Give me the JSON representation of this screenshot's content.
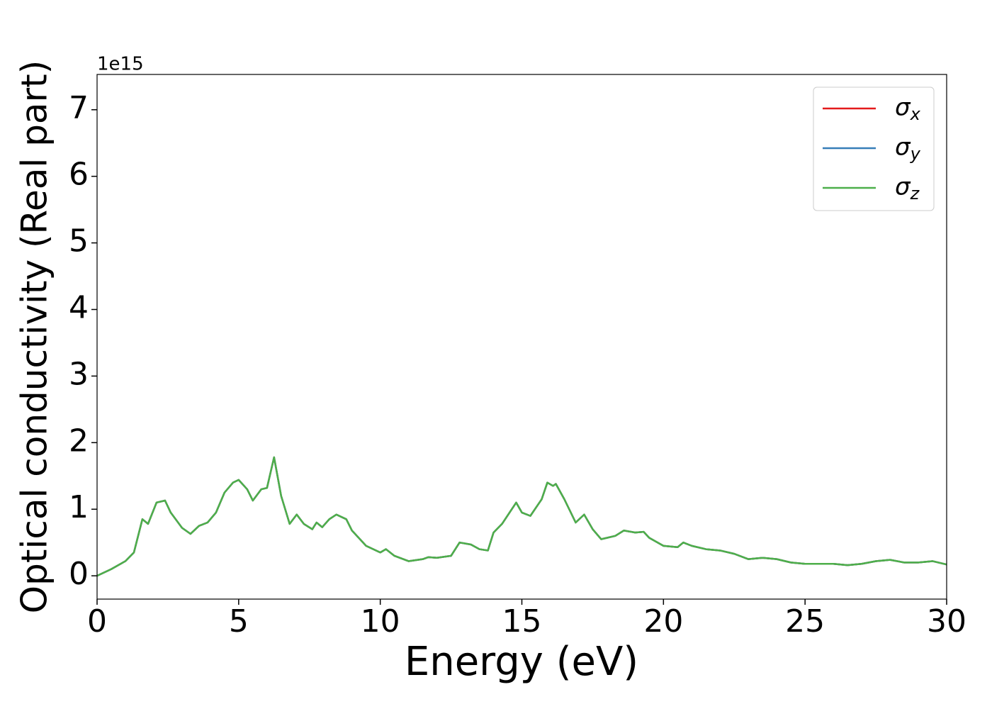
{
  "chart_data": {
    "type": "line",
    "y_label": "Optical conductivity (Real part)",
    "x_label": "Energy (eV)",
    "y_offset_label": "1e15",
    "x": [
      0,
      0.5,
      1,
      1.3,
      1.6,
      1.8,
      2.1,
      2.4,
      2.6,
      3,
      3.3,
      3.6,
      3.9,
      4.2,
      4.5,
      4.8,
      5,
      5.3,
      5.5,
      5.8,
      6,
      6.25,
      6.5,
      6.8,
      7.05,
      7.3,
      7.6,
      7.75,
      7.95,
      8.2,
      8.45,
      8.8,
      9,
      9.5,
      10,
      10.2,
      10.5,
      11,
      11.5,
      11.7,
      12,
      12.5,
      12.8,
      13.2,
      13.5,
      13.8,
      14,
      14.3,
      14.8,
      15,
      15.3,
      15.7,
      15.9,
      16.1,
      16.2,
      16.5,
      16.9,
      17.2,
      17.5,
      17.8,
      18.3,
      18.6,
      19,
      19.3,
      19.5,
      20,
      20.5,
      20.7,
      21,
      21.5,
      22,
      22.5,
      23,
      23.5,
      24,
      24.5,
      25,
      25.5,
      26,
      26.5,
      27,
      27.5,
      28,
      28.5,
      29,
      29.5,
      30
    ],
    "series": [
      {
        "name": "σx",
        "color": "#e41a1c",
        "values": [
          0,
          0.1,
          0.22,
          0.35,
          0.85,
          0.78,
          1.1,
          1.13,
          0.95,
          0.72,
          0.63,
          0.75,
          0.8,
          0.95,
          1.25,
          1.4,
          1.44,
          1.3,
          1.13,
          1.3,
          1.32,
          1.78,
          1.2,
          0.78,
          0.92,
          0.78,
          0.7,
          0.8,
          0.73,
          0.85,
          0.92,
          0.85,
          0.68,
          0.45,
          0.35,
          0.4,
          0.3,
          0.22,
          0.25,
          0.28,
          0.27,
          0.3,
          0.5,
          0.47,
          0.4,
          0.38,
          0.65,
          0.78,
          1.1,
          0.95,
          0.9,
          1.15,
          1.4,
          1.35,
          1.38,
          1.15,
          0.8,
          0.92,
          0.7,
          0.55,
          0.6,
          0.68,
          0.65,
          0.66,
          0.57,
          0.45,
          0.43,
          0.5,
          0.45,
          0.4,
          0.38,
          0.33,
          0.25,
          0.27,
          0.25,
          0.2,
          0.18,
          0.18,
          0.18,
          0.16,
          0.18,
          0.22,
          0.24,
          0.2,
          0.2,
          0.22,
          0.17
        ]
      },
      {
        "name": "σy",
        "color": "#377eb8",
        "values": [
          0,
          0.1,
          0.22,
          0.35,
          0.85,
          0.78,
          1.1,
          1.13,
          0.95,
          0.72,
          0.63,
          0.75,
          0.8,
          0.95,
          1.25,
          1.4,
          1.44,
          1.3,
          1.13,
          1.3,
          1.32,
          1.78,
          1.2,
          0.78,
          0.92,
          0.78,
          0.7,
          0.8,
          0.73,
          0.85,
          0.92,
          0.85,
          0.68,
          0.45,
          0.35,
          0.4,
          0.3,
          0.22,
          0.25,
          0.28,
          0.27,
          0.3,
          0.5,
          0.47,
          0.4,
          0.38,
          0.65,
          0.78,
          1.1,
          0.95,
          0.9,
          1.15,
          1.4,
          1.35,
          1.38,
          1.15,
          0.8,
          0.92,
          0.7,
          0.55,
          0.6,
          0.68,
          0.65,
          0.66,
          0.57,
          0.45,
          0.43,
          0.5,
          0.45,
          0.4,
          0.38,
          0.33,
          0.25,
          0.27,
          0.25,
          0.2,
          0.18,
          0.18,
          0.18,
          0.16,
          0.18,
          0.22,
          0.24,
          0.2,
          0.2,
          0.22,
          0.17
        ]
      },
      {
        "name": "σz",
        "color": "#4daf4a",
        "values": [
          0,
          0.1,
          0.22,
          0.35,
          0.85,
          0.78,
          1.1,
          1.13,
          0.95,
          0.72,
          0.63,
          0.75,
          0.8,
          0.95,
          1.25,
          1.4,
          1.44,
          1.3,
          1.13,
          1.3,
          1.32,
          1.78,
          1.2,
          0.78,
          0.92,
          0.78,
          0.7,
          0.8,
          0.73,
          0.85,
          0.92,
          0.85,
          0.68,
          0.45,
          0.35,
          0.4,
          0.3,
          0.22,
          0.25,
          0.28,
          0.27,
          0.3,
          0.5,
          0.47,
          0.4,
          0.38,
          0.65,
          0.78,
          1.1,
          0.95,
          0.9,
          1.15,
          1.4,
          1.35,
          1.38,
          1.15,
          0.8,
          0.92,
          0.7,
          0.55,
          0.6,
          0.68,
          0.65,
          0.66,
          0.57,
          0.45,
          0.43,
          0.5,
          0.45,
          0.4,
          0.38,
          0.33,
          0.25,
          0.27,
          0.25,
          0.2,
          0.18,
          0.18,
          0.18,
          0.16,
          0.18,
          0.22,
          0.24,
          0.2,
          0.2,
          0.22,
          0.17
        ]
      }
    ],
    "xlim": [
      0,
      30
    ],
    "xticks": [
      0,
      5,
      10,
      15,
      20,
      25,
      30
    ],
    "ylim": [
      -0.35,
      7.53
    ],
    "yticks": [
      0,
      1,
      2,
      3,
      4,
      5,
      6,
      7
    ],
    "grid": false,
    "legend": "upper right"
  }
}
